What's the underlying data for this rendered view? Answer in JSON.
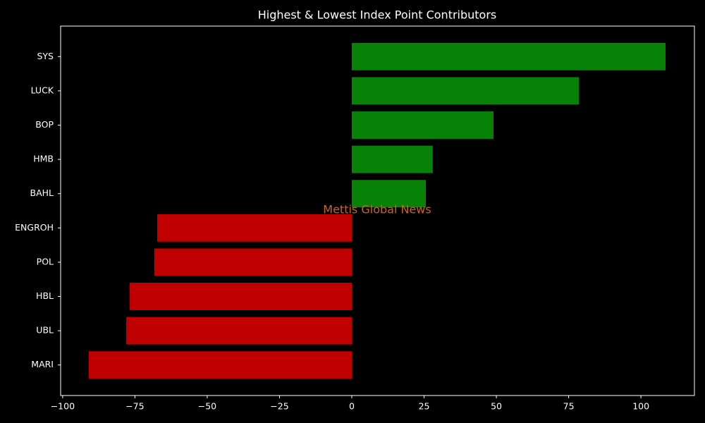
{
  "chart_data": {
    "type": "barh",
    "title": "Highest & Lowest Index Point Contributors",
    "annotation": "Mettis Global News",
    "categories": [
      "SYS",
      "LUCK",
      "BOP",
      "HMB",
      "BAHL",
      "ENGROH",
      "POL",
      "HBL",
      "UBL",
      "MARI"
    ],
    "values": [
      108.5,
      78.5,
      49.0,
      28.0,
      25.6,
      -67.3,
      -68.3,
      -76.8,
      -78.0,
      -91.0
    ],
    "colors": [
      "#078207",
      "#078207",
      "#078207",
      "#078207",
      "#078207",
      "#c00000",
      "#c00000",
      "#c00000",
      "#c00000",
      "#c00000"
    ],
    "xlim": [
      -100.7,
      118.5
    ],
    "xticks": [
      {
        "value": -100,
        "label": "−100"
      },
      {
        "value": -75,
        "label": "−75"
      },
      {
        "value": -50,
        "label": "−50"
      },
      {
        "value": -25,
        "label": "−25"
      },
      0,
      25,
      50,
      75,
      100
    ],
    "grid": false
  }
}
